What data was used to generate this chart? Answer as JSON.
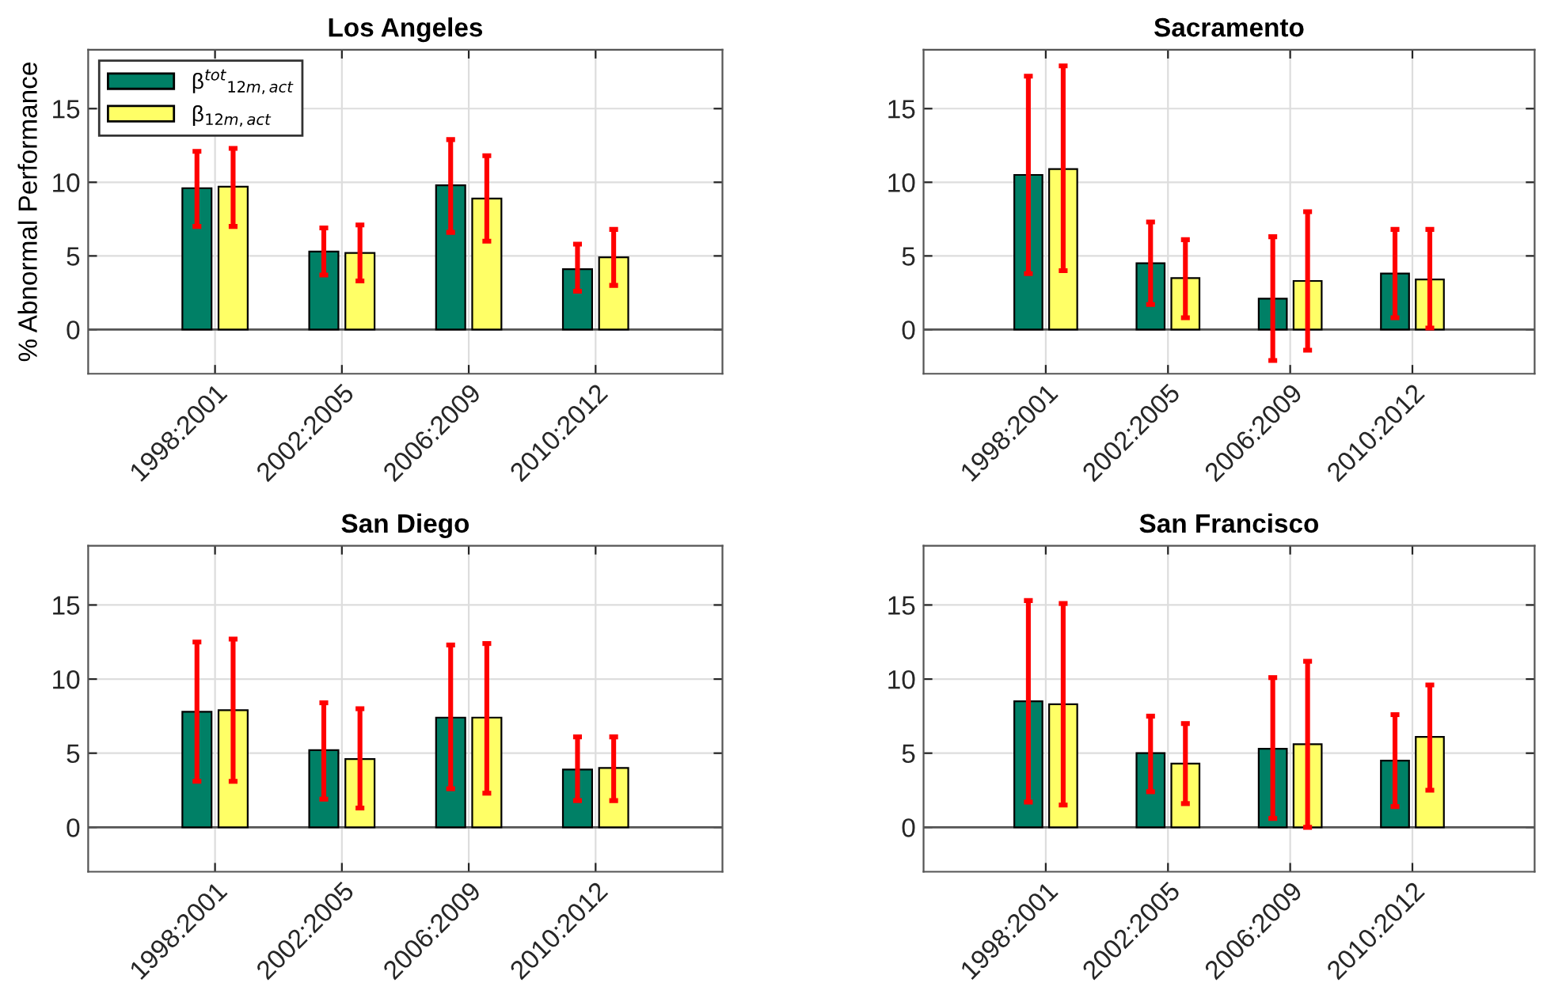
{
  "chart_data": [
    {
      "type": "bar",
      "title": "Los Angeles",
      "ylabel": "% Abnormal Performance",
      "categories": [
        "1998:2001",
        "2002:2005",
        "2006:2009",
        "2010:2012"
      ],
      "ylim": [
        -3,
        19
      ],
      "yticks": [
        0,
        5,
        10,
        15
      ],
      "grid": true,
      "legend": "top left",
      "series": [
        {
          "name": "β$^{tot}$$_{12m,act}$",
          "color": "#008066",
          "values": [
            9.6,
            5.3,
            9.8,
            4.1
          ],
          "errors": [
            [
              7.0,
              12.1
            ],
            [
              3.7,
              6.9
            ],
            [
              6.6,
              12.9
            ],
            [
              2.6,
              5.8
            ]
          ]
        },
        {
          "name": "β$_{12m,act}$",
          "color": "#ffff66",
          "values": [
            9.7,
            5.2,
            8.9,
            4.9
          ],
          "errors": [
            [
              7.0,
              12.3
            ],
            [
              3.3,
              7.1
            ],
            [
              6.0,
              11.8
            ],
            [
              3.0,
              6.8
            ]
          ]
        }
      ]
    },
    {
      "type": "bar",
      "title": "Sacramento",
      "categories": [
        "1998:2001",
        "2002:2005",
        "2006:2009",
        "2010:2012"
      ],
      "ylim": [
        -3,
        19
      ],
      "yticks": [
        0,
        5,
        10,
        15
      ],
      "grid": true,
      "series": [
        {
          "color": "#008066",
          "values": [
            10.5,
            4.5,
            2.1,
            3.8
          ],
          "errors": [
            [
              3.8,
              17.2
            ],
            [
              1.7,
              7.3
            ],
            [
              -2.1,
              6.3
            ],
            [
              0.8,
              6.8
            ]
          ]
        },
        {
          "color": "#ffff66",
          "values": [
            10.9,
            3.5,
            3.3,
            3.4
          ],
          "errors": [
            [
              4.0,
              17.9
            ],
            [
              0.8,
              6.1
            ],
            [
              -1.4,
              8.0
            ],
            [
              0.1,
              6.8
            ]
          ]
        }
      ]
    },
    {
      "type": "bar",
      "title": "San Diego",
      "categories": [
        "1998:2001",
        "2002:2005",
        "2006:2009",
        "2010:2012"
      ],
      "ylim": [
        -3,
        19
      ],
      "yticks": [
        0,
        5,
        10,
        15
      ],
      "grid": true,
      "series": [
        {
          "color": "#008066",
          "values": [
            7.8,
            5.2,
            7.4,
            3.9
          ],
          "errors": [
            [
              3.1,
              12.5
            ],
            [
              1.9,
              8.4
            ],
            [
              2.6,
              12.3
            ],
            [
              1.8,
              6.1
            ]
          ]
        },
        {
          "color": "#ffff66",
          "values": [
            7.9,
            4.6,
            7.4,
            4.0
          ],
          "errors": [
            [
              3.1,
              12.7
            ],
            [
              1.3,
              8.0
            ],
            [
              2.3,
              12.4
            ],
            [
              1.8,
              6.1
            ]
          ]
        }
      ]
    },
    {
      "type": "bar",
      "title": "San Francisco",
      "categories": [
        "1998:2001",
        "2002:2005",
        "2006:2009",
        "2010:2012"
      ],
      "ylim": [
        -3,
        19
      ],
      "yticks": [
        0,
        5,
        10,
        15
      ],
      "grid": true,
      "series": [
        {
          "color": "#008066",
          "values": [
            8.5,
            5.0,
            5.3,
            4.5
          ],
          "errors": [
            [
              1.7,
              15.3
            ],
            [
              2.4,
              7.5
            ],
            [
              0.6,
              10.1
            ],
            [
              1.4,
              7.6
            ]
          ]
        },
        {
          "color": "#ffff66",
          "values": [
            8.3,
            4.3,
            5.6,
            6.1
          ],
          "errors": [
            [
              1.5,
              15.1
            ],
            [
              1.6,
              7.0
            ],
            [
              0.0,
              11.2
            ],
            [
              2.5,
              9.6
            ]
          ]
        }
      ]
    }
  ]
}
